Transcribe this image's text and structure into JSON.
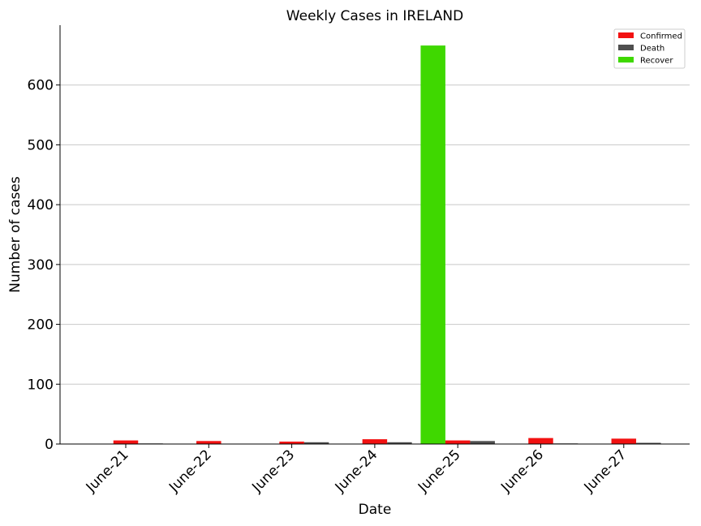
{
  "chart_data": {
    "type": "bar",
    "title": "Weekly Cases in IRELAND",
    "xlabel": "Date",
    "ylabel": "Number of cases",
    "categories": [
      "June-21",
      "June-22",
      "June-23",
      "June-24",
      "June-25",
      "June-26",
      "June-27"
    ],
    "series": [
      {
        "name": "Recover",
        "color": "#3fd800",
        "values": [
          0,
          0,
          0,
          0,
          666,
          0,
          0
        ]
      },
      {
        "name": "Confirmed",
        "color": "#f21111",
        "values": [
          6,
          5,
          4,
          8,
          6,
          10,
          9
        ]
      },
      {
        "name": "Death",
        "color": "#4f4f4f",
        "values": [
          1,
          0,
          3,
          3,
          5,
          1,
          2
        ]
      }
    ],
    "legend_order": [
      "Confirmed",
      "Death",
      "Recover"
    ],
    "ylim": [
      0,
      700
    ],
    "yticks": [
      0,
      100,
      200,
      300,
      400,
      500,
      600
    ],
    "grid": "horizontal",
    "legend_position": "top-right"
  }
}
